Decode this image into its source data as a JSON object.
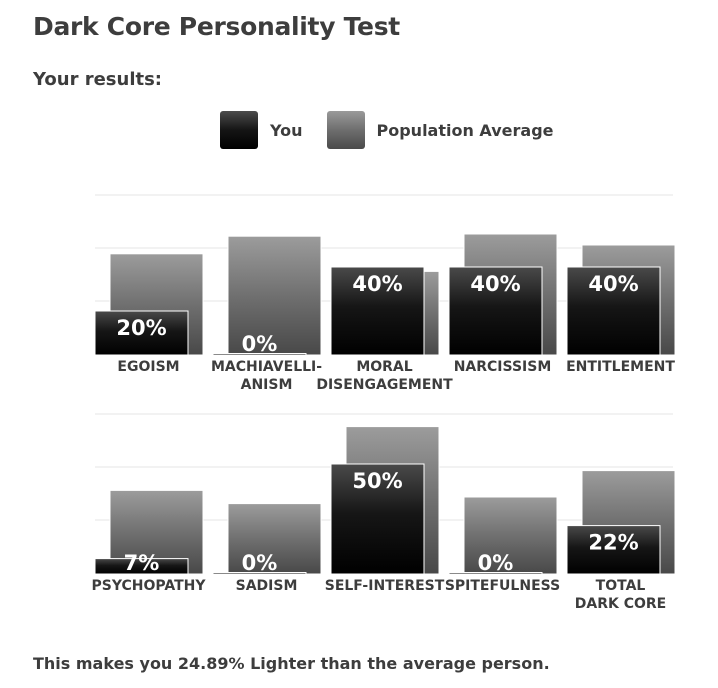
{
  "page": {
    "title": "Dark Core Personality Test",
    "results_label": "Your results:"
  },
  "legend": {
    "you_label": "You",
    "population_label": "Population Average"
  },
  "colors": {
    "you": "#000000",
    "population": "#6e6e6e",
    "grid": "#e6e6e6",
    "label": "#3d3d3d"
  },
  "chart_data": [
    {
      "type": "bar",
      "title": "",
      "categories": [
        [
          "EGOISM"
        ],
        [
          "MACHIAVELLI-",
          "ANISM"
        ],
        [
          "MORAL",
          "DISENGAGEMENT"
        ],
        [
          "NARCISSISM"
        ],
        [
          "ENTITLEMENT"
        ]
      ],
      "series": [
        {
          "name": "You",
          "values": [
            20,
            0,
            40,
            40,
            40
          ]
        },
        {
          "name": "Population Average",
          "values": [
            46,
            54,
            38,
            55,
            50
          ]
        }
      ],
      "data_labels": [
        "20%",
        "0%",
        "40%",
        "40%",
        "40%"
      ],
      "ylim": [
        0,
        100
      ],
      "grid": true
    },
    {
      "type": "bar",
      "title": "",
      "categories": [
        [
          "PSYCHOPATHY"
        ],
        [
          "SADISM"
        ],
        [
          "SELF-INTEREST"
        ],
        [
          "SPITEFULNESS"
        ],
        [
          "TOTAL",
          "DARK CORE"
        ]
      ],
      "series": [
        {
          "name": "You",
          "values": [
            7,
            0,
            50,
            0,
            22
          ]
        },
        {
          "name": "Population Average",
          "values": [
            38,
            32,
            67,
            35,
            47
          ]
        }
      ],
      "data_labels": [
        "7%",
        "0%",
        "50%",
        "0%",
        "22%"
      ],
      "ylim": [
        0,
        100
      ],
      "grid": true
    }
  ],
  "footer": {
    "text": "This makes you 24.89% Lighter than the average person."
  }
}
